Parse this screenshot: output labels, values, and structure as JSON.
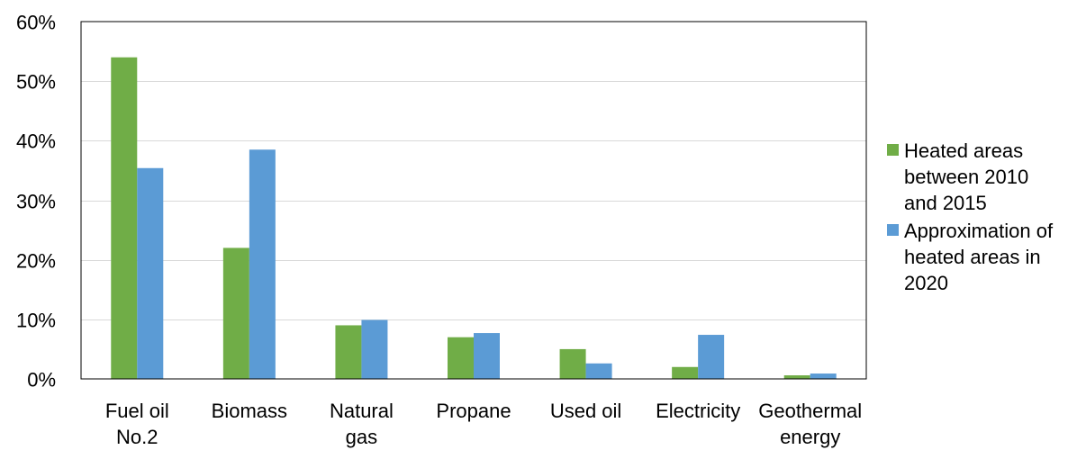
{
  "chart_data": {
    "type": "bar",
    "categories": [
      [
        "Fuel oil",
        "No.2"
      ],
      [
        "Biomass"
      ],
      [
        "Natural",
        "gas"
      ],
      [
        "Propane"
      ],
      [
        "Used oil"
      ],
      [
        "Electricity"
      ],
      [
        "Geothermal",
        "energy"
      ]
    ],
    "series": [
      {
        "name": [
          "Heated areas",
          "between 2010",
          "and 2015"
        ],
        "color": "#70AD47",
        "values": [
          54,
          22,
          9,
          7,
          5,
          2,
          0.6
        ]
      },
      {
        "name": [
          "Approximation of",
          "heated areas in",
          "2020"
        ],
        "color": "#5B9BD5",
        "values": [
          35.4,
          38.5,
          9.9,
          7.7,
          2.6,
          7.4,
          0.9
        ]
      }
    ],
    "ylim": [
      0,
      60
    ],
    "yticks": [
      0,
      10,
      20,
      30,
      40,
      50,
      60
    ],
    "ytick_suffix": "%",
    "grid": true,
    "legend_position": "right",
    "title": "",
    "xlabel": "",
    "ylabel": ""
  }
}
